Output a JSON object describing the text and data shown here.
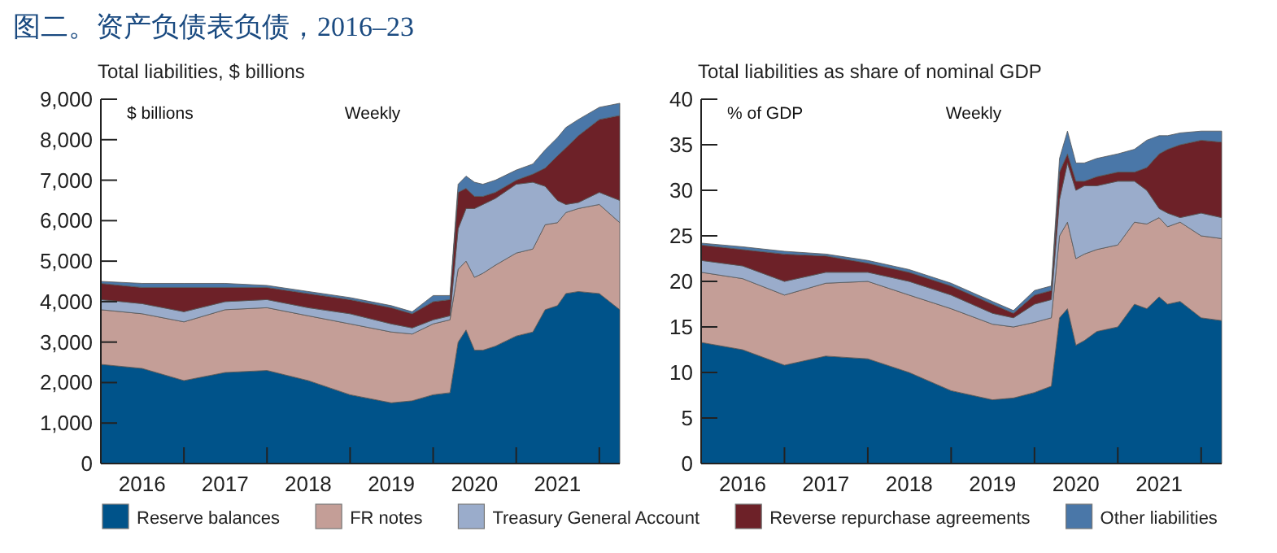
{
  "chart_data": [
    {
      "type": "area",
      "stacked": true,
      "title": "图二。资产负债表负债，2016–23",
      "subtitle": "Total liabilities, $ billions",
      "annotations": [
        "$ billions",
        "Weekly"
      ],
      "legend": "bottom",
      "x": [
        "2016-01-01",
        "2016-07-01",
        "2017-01-01",
        "2017-07-01",
        "2018-01-01",
        "2018-07-01",
        "2019-01-01",
        "2019-07-01",
        "2019-10-01",
        "2020-01-01",
        "2020-03-15",
        "2020-04-20",
        "2020-05-25",
        "2020-07-01",
        "2020-08-07",
        "2020-10-01",
        "2021-01-01",
        "2021-03-15",
        "2021-05-08",
        "2021-07-01",
        "2021-08-07",
        "2021-10-01",
        "2022-01-01",
        "2022-04-01"
      ],
      "xlim": [
        "2016-01-01",
        "2022-04-01"
      ],
      "xticks": [
        {
          "value": "2017-01-01",
          "label": null
        },
        {
          "value": "2018-01-01",
          "label": null
        },
        {
          "value": "2019-01-01",
          "label": null
        },
        {
          "value": "2020-01-01",
          "label": null
        },
        {
          "value": "2021-01-01",
          "label": null
        },
        {
          "value": "2022-01-01",
          "label": null
        },
        {
          "value": "2016-07-01",
          "label": "2016"
        },
        {
          "value": "2017-07-01",
          "label": "2017"
        },
        {
          "value": "2018-07-01",
          "label": "2018"
        },
        {
          "value": "2019-07-01",
          "label": "2019"
        },
        {
          "value": "2020-07-01",
          "label": "2020"
        },
        {
          "value": "2021-07-01",
          "label": "2021"
        }
      ],
      "ylim": [
        0,
        9000
      ],
      "yticks": [
        0,
        {
          "value": 1000,
          "label": "1,000"
        },
        {
          "value": 2000,
          "label": "2,000"
        },
        {
          "value": 3000,
          "label": "3,000"
        },
        {
          "value": 4000,
          "label": "4,000"
        },
        {
          "value": 5000,
          "label": "5,000"
        },
        {
          "value": 6000,
          "label": "6,000"
        },
        {
          "value": 7000,
          "label": "7,000"
        },
        {
          "value": 8000,
          "label": "8,000"
        },
        {
          "value": 9000,
          "label": "9,000"
        }
      ],
      "series": [
        {
          "name": "Reserve balances",
          "color": "#00538a",
          "values": [
            2450,
            2350,
            2050,
            2250,
            2300,
            2050,
            1700,
            1500,
            1550,
            1700,
            1750,
            3000,
            3300,
            2800,
            2800,
            2900,
            3150,
            3250,
            3800,
            3900,
            4200,
            4250,
            4200,
            3800
          ]
        },
        {
          "name": "FR notes",
          "color": "#c49e97",
          "values": [
            1350,
            1350,
            1450,
            1550,
            1550,
            1600,
            1750,
            1750,
            1650,
            1750,
            1800,
            1800,
            1700,
            1800,
            1900,
            2000,
            2050,
            2050,
            2100,
            2050,
            2000,
            2050,
            2200,
            2150
          ]
        },
        {
          "name": "Treasury General Account",
          "color": "#9aaccb",
          "values": [
            250,
            250,
            250,
            200,
            200,
            200,
            250,
            200,
            150,
            100,
            100,
            1000,
            1300,
            1700,
            1700,
            1650,
            1700,
            1650,
            950,
            550,
            200,
            150,
            300,
            550
          ]
        },
        {
          "name": "Reverse repurchase agreements",
          "color": "#6d2128",
          "values": [
            400,
            400,
            600,
            350,
            300,
            350,
            350,
            400,
            350,
            450,
            400,
            900,
            500,
            300,
            200,
            150,
            100,
            200,
            450,
            1100,
            1400,
            1650,
            1800,
            2100
          ]
        },
        {
          "name": "Other liabilities",
          "color": "#4a77a8",
          "values": [
            50,
            100,
            100,
            100,
            50,
            50,
            50,
            50,
            50,
            150,
            100,
            200,
            300,
            350,
            300,
            300,
            250,
            250,
            450,
            450,
            500,
            400,
            300,
            300
          ]
        }
      ]
    },
    {
      "type": "area",
      "stacked": true,
      "subtitle": "Total liabilities as share of nominal GDP",
      "annotations": [
        "% of GDP",
        "Weekly"
      ],
      "x": [
        "2016-01-01",
        "2016-07-01",
        "2017-01-01",
        "2017-07-01",
        "2018-01-01",
        "2018-07-01",
        "2019-01-01",
        "2019-07-01",
        "2019-10-01",
        "2020-01-01",
        "2020-03-15",
        "2020-04-20",
        "2020-05-25",
        "2020-07-01",
        "2020-08-07",
        "2020-10-01",
        "2021-01-01",
        "2021-03-15",
        "2021-05-08",
        "2021-07-01",
        "2021-08-07",
        "2021-10-01",
        "2022-01-01",
        "2022-04-01"
      ],
      "xlim": [
        "2016-01-01",
        "2022-04-01"
      ],
      "xticks": [
        {
          "value": "2017-01-01",
          "label": null
        },
        {
          "value": "2018-01-01",
          "label": null
        },
        {
          "value": "2019-01-01",
          "label": null
        },
        {
          "value": "2020-01-01",
          "label": null
        },
        {
          "value": "2021-01-01",
          "label": null
        },
        {
          "value": "2022-01-01",
          "label": null
        },
        {
          "value": "2016-07-01",
          "label": "2016"
        },
        {
          "value": "2017-07-01",
          "label": "2017"
        },
        {
          "value": "2018-07-01",
          "label": "2018"
        },
        {
          "value": "2019-07-01",
          "label": "2019"
        },
        {
          "value": "2020-07-01",
          "label": "2020"
        },
        {
          "value": "2021-07-01",
          "label": "2021"
        }
      ],
      "ylim": [
        0,
        40
      ],
      "yticks": [
        0,
        5,
        10,
        15,
        20,
        25,
        30,
        35,
        40
      ],
      "series": [
        {
          "color": "#00538a",
          "values": [
            13.3,
            12.5,
            10.8,
            11.8,
            11.5,
            10,
            8,
            7,
            7.2,
            7.8,
            8.5,
            16,
            17,
            13,
            13.5,
            14.5,
            15,
            17.5,
            17,
            18.3,
            17.5,
            17.8,
            16,
            15.7
          ]
        },
        {
          "color": "#c49e97",
          "values": [
            7.7,
            7.8,
            7.7,
            8,
            8.5,
            8.5,
            9,
            8.3,
            7.8,
            7.7,
            7.5,
            9,
            9.5,
            9.5,
            9.5,
            9,
            9,
            9,
            9.3,
            8.7,
            8.5,
            8.7,
            9,
            9
          ]
        },
        {
          "color": "#9aaccb",
          "values": [
            1.3,
            1.4,
            1.5,
            1.2,
            1,
            1.5,
            1.5,
            1.2,
            1,
            2,
            2,
            4,
            6.5,
            7.5,
            7.5,
            7,
            7,
            4.5,
            3.7,
            1,
            1.5,
            0.5,
            2.5,
            2.3
          ]
        },
        {
          "color": "#6d2128",
          "values": [
            1.7,
            1.8,
            3,
            1.8,
            1,
            1,
            1,
            1,
            0.5,
            1,
            1,
            3,
            1,
            1,
            0.5,
            1,
            1,
            1,
            2.5,
            6,
            7,
            8,
            8,
            8.3
          ]
        },
        {
          "color": "#4a77a8",
          "values": [
            0.2,
            0.3,
            0.3,
            0.2,
            0.3,
            0.3,
            0.3,
            0.3,
            0.3,
            0.5,
            0.5,
            1.5,
            2.5,
            2,
            2,
            2,
            2,
            2.5,
            3,
            2,
            1.5,
            1.3,
            1,
            1.2
          ]
        }
      ]
    }
  ]
}
